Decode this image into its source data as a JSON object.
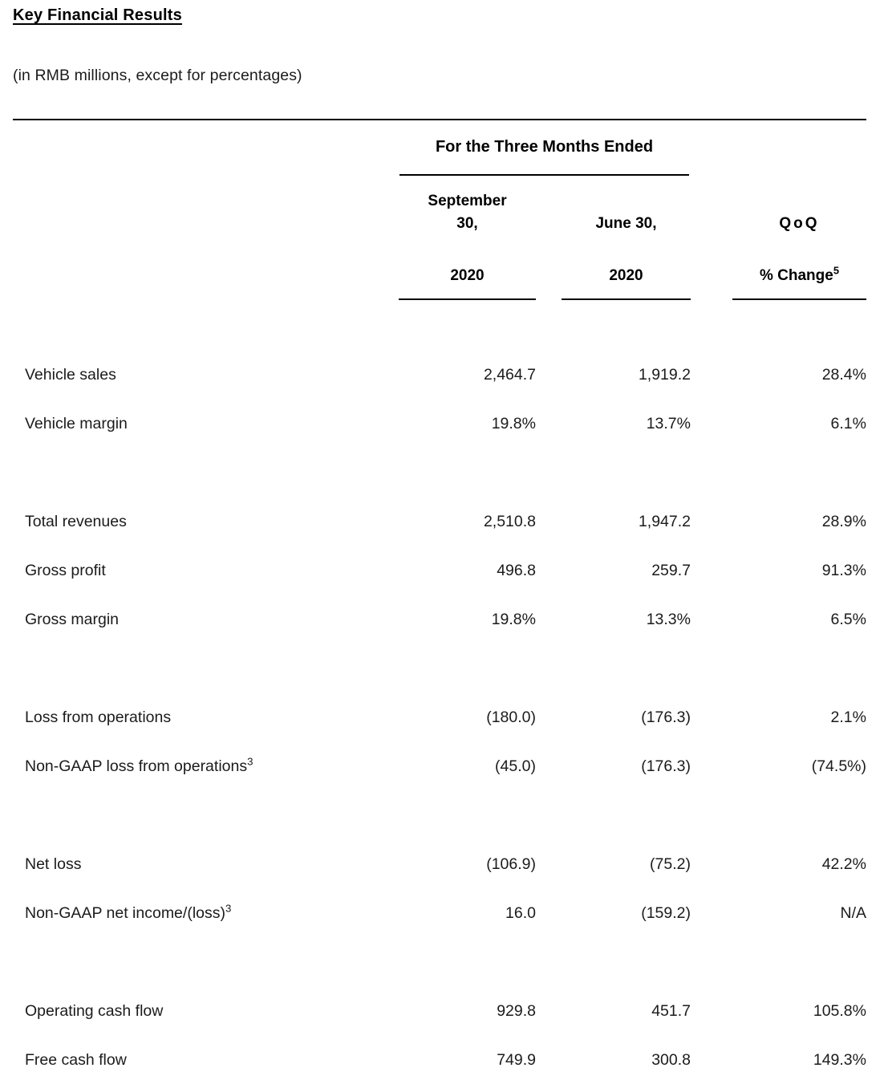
{
  "title": "Key Financial Results",
  "subtitle": "(in RMB millions, except for percentages)",
  "table": {
    "period_header": "For the Three Months Ended",
    "columns": [
      {
        "period": "September 30,",
        "year": "2020",
        "sup": ""
      },
      {
        "period": "QoQ",
        "year": "% Change",
        "sup": "5"
      },
      {
        "period": "June 30,",
        "year": "2020",
        "sup": ""
      }
    ],
    "rows": [
      {
        "label": "Vehicle sales",
        "sup": "",
        "values": [
          "2,464.7",
          "1,919.2",
          "28.4%"
        ]
      },
      {
        "label": "Vehicle margin",
        "sup": "",
        "values": [
          "19.8%",
          "13.7%",
          "6.1%"
        ]
      },
      {
        "label": "Total revenues",
        "sup": "",
        "values": [
          "2,510.8",
          "1,947.2",
          "28.9%"
        ]
      },
      {
        "label": "Gross profit",
        "sup": "",
        "values": [
          "496.8",
          "259.7",
          "91.3%"
        ]
      },
      {
        "label": "Gross margin",
        "sup": "",
        "values": [
          "19.8%",
          "13.3%",
          "6.5%"
        ]
      },
      {
        "label": "Loss from operations",
        "sup": "",
        "values": [
          "(180.0)",
          "(176.3)",
          "2.1%"
        ]
      },
      {
        "label": "Non-GAAP loss from operations",
        "sup": "3",
        "values": [
          "(45.0)",
          "(176.3)",
          "(74.5%)"
        ]
      },
      {
        "label": "Net loss",
        "sup": "",
        "values": [
          "(106.9)",
          "(75.2)",
          "42.2%"
        ]
      },
      {
        "label": "Non-GAAP net income/(loss)",
        "sup": "3",
        "values": [
          "16.0",
          "(159.2)",
          "N/A"
        ]
      },
      {
        "label": "Operating cash flow",
        "sup": "",
        "values": [
          "929.8",
          "451.7",
          "105.8%"
        ]
      },
      {
        "label": "Free cash flow",
        "sup": "",
        "values": [
          "749.9",
          "300.8",
          "149.3%"
        ]
      }
    ]
  }
}
